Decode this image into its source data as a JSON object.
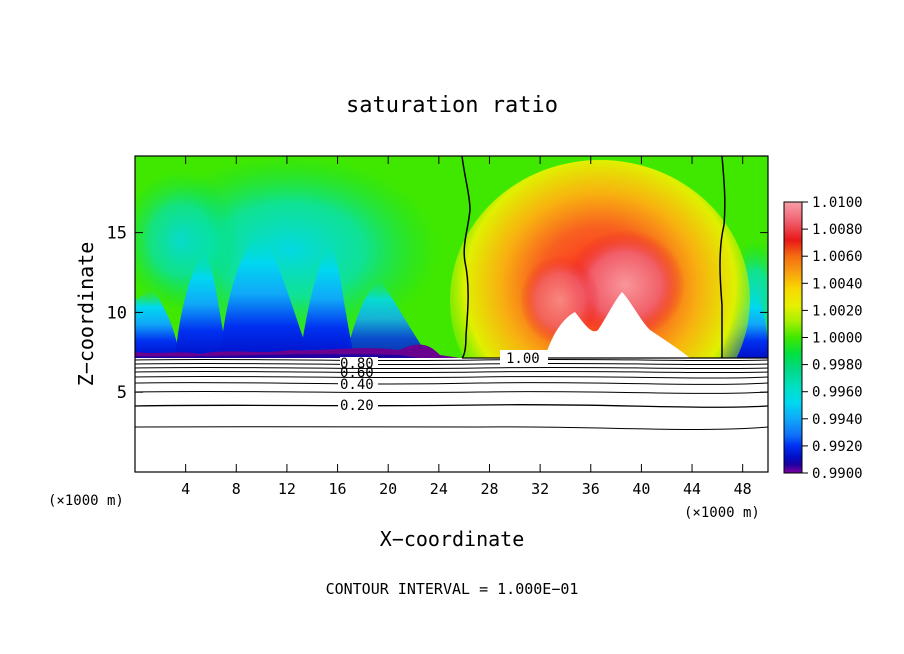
{
  "chart_data": {
    "type": "heatmap",
    "title": "saturation ratio",
    "xlabel": "X−coordinate",
    "ylabel": "Z−coordinate",
    "x_unit": "(×1000 m)",
    "z_unit": "(×1000 m)",
    "xlim": [
      0,
      50
    ],
    "ylim": [
      0,
      19.8
    ],
    "x_ticks": [
      4,
      8,
      12,
      16,
      20,
      24,
      28,
      32,
      36,
      40,
      44,
      48
    ],
    "y_ticks": [
      5,
      10,
      15
    ],
    "colorbar": {
      "min": 0.99,
      "max": 1.01,
      "labels": [
        "1.0100",
        "1.0080",
        "1.0060",
        "1.0040",
        "1.0020",
        "1.0000",
        "0.9980",
        "0.9960",
        "0.9940",
        "0.9920",
        "0.9900"
      ],
      "colors": [
        "#f8a0a8",
        "#f06070",
        "#e81818",
        "#f46c10",
        "#f8a010",
        "#f8d800",
        "#e8f000",
        "#a8f000",
        "#40e800",
        "#00e040",
        "#00d888",
        "#00e0c0",
        "#00d8f0",
        "#10a8f8",
        "#1070f8",
        "#0030f0",
        "#0010c8",
        "#2000a0",
        "#6a0090",
        "#8000a0"
      ]
    },
    "contour_labels": [
      "1.00",
      "0.80",
      "0.60",
      "0.40",
      "0.20"
    ],
    "footer": "CONTOUR INTERVAL = 1.000E−01"
  },
  "colors": {
    "background": "#ffffff",
    "frame": "#000000"
  }
}
